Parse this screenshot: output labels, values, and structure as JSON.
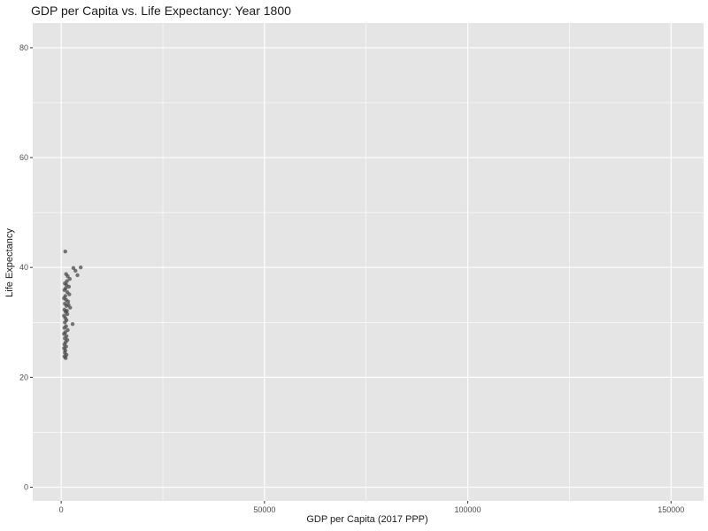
{
  "chart_data": {
    "type": "scatter",
    "title": "GDP per Capita vs. Life Expectancy: Year 1800",
    "xlabel": "GDP per Capita (2017 PPP)",
    "ylabel": "Life Expectancy",
    "xlim": [
      -7000,
      158000
    ],
    "ylim": [
      -2.5,
      84.5
    ],
    "x_ticks": [
      0,
      50000,
      100000,
      150000
    ],
    "x_tick_labels": [
      "0",
      "50000",
      "100000",
      "150000"
    ],
    "y_ticks": [
      0,
      20,
      40,
      60,
      80
    ],
    "y_tick_labels": [
      "0",
      "20",
      "40",
      "60",
      "80"
    ],
    "grid": true,
    "colors": {
      "panel": "#e5e5e5",
      "grid": "#ffffff",
      "point": "#404040"
    },
    "point_alpha": 0.7,
    "points": [
      [
        1000,
        42.9
      ],
      [
        4800,
        40.0
      ],
      [
        3000,
        39.9
      ],
      [
        3500,
        39.4
      ],
      [
        4000,
        38.6
      ],
      [
        1200,
        38.8
      ],
      [
        1600,
        38.4
      ],
      [
        2100,
        37.9
      ],
      [
        1400,
        37.5
      ],
      [
        900,
        37.1
      ],
      [
        1300,
        36.8
      ],
      [
        1100,
        36.2
      ],
      [
        800,
        35.9
      ],
      [
        1500,
        35.5
      ],
      [
        2000,
        35.1
      ],
      [
        1000,
        34.8
      ],
      [
        700,
        34.4
      ],
      [
        1200,
        34.1
      ],
      [
        1700,
        33.8
      ],
      [
        900,
        33.4
      ],
      [
        1300,
        33.0
      ],
      [
        2200,
        32.7
      ],
      [
        800,
        32.3
      ],
      [
        1100,
        31.9
      ],
      [
        1500,
        31.5
      ],
      [
        700,
        31.2
      ],
      [
        1000,
        30.8
      ],
      [
        1300,
        30.4
      ],
      [
        900,
        30.0
      ],
      [
        2800,
        29.7
      ],
      [
        1200,
        29.3
      ],
      [
        800,
        29.0
      ],
      [
        1600,
        28.6
      ],
      [
        1000,
        28.2
      ],
      [
        700,
        27.9
      ],
      [
        1300,
        27.5
      ],
      [
        900,
        27.1
      ],
      [
        1500,
        26.8
      ],
      [
        1100,
        26.4
      ],
      [
        800,
        26.0
      ],
      [
        1200,
        25.6
      ],
      [
        700,
        25.3
      ],
      [
        1000,
        24.9
      ],
      [
        900,
        24.5
      ],
      [
        1300,
        24.1
      ],
      [
        800,
        23.8
      ],
      [
        1100,
        23.5
      ],
      [
        1900,
        36.5
      ],
      [
        1800,
        33.2
      ],
      [
        1400,
        32.1
      ]
    ]
  }
}
